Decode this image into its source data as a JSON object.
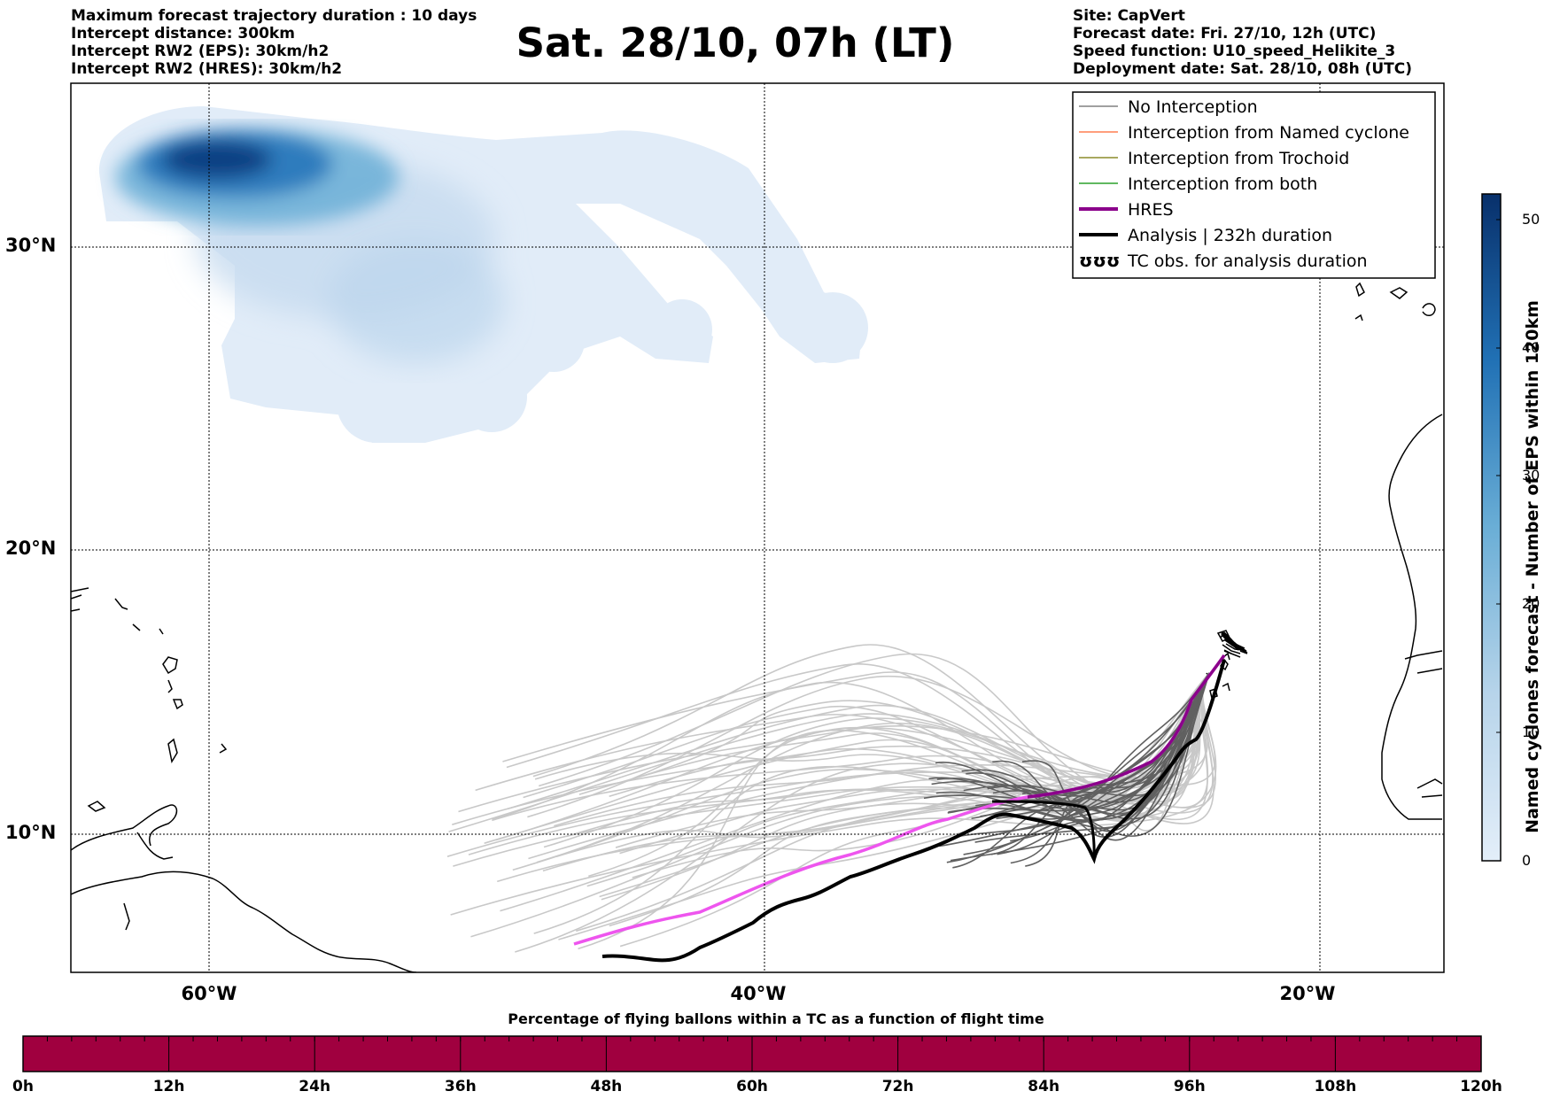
{
  "header": {
    "left": [
      "Maximum forecast trajectory duration : 10 days",
      "Intercept distance: 300km",
      "Intercept RW2 (EPS):  30km/h2",
      "Intercept RW2 (HRES): 30km/h2"
    ],
    "right": [
      "Site: CapVert",
      "Forecast date: Fri. 27/10, 12h (UTC)",
      "Speed function: U10_speed_Helikite_3",
      "Deployment date: Sat. 28/10, 08h (UTC)"
    ],
    "title": "Sat. 28/10, 07h (LT)"
  },
  "map": {
    "lat_labels": [
      "30°N",
      "20°N",
      "10°N"
    ],
    "lon_labels": [
      "60°W",
      "40°W",
      "20°W"
    ]
  },
  "legend": {
    "items": [
      {
        "label": "No Interception",
        "color": "#808080"
      },
      {
        "label": "Interception from Named cyclone",
        "color": "#ff7f50"
      },
      {
        "label": "Interception from Trochoid",
        "color": "#8b8b2a"
      },
      {
        "label": "Interception from both",
        "color": "#2ca02c"
      },
      {
        "label": "HRES",
        "color": "#8b008b"
      },
      {
        "label": "Analysis | 232h duration",
        "color": "#000000"
      },
      {
        "label": "TC obs. for analysis duration",
        "color": "#000000"
      }
    ],
    "obs_symbol": "ʊʊʊ"
  },
  "colorbar": {
    "label": "Named cyclones forecast - Number of EPS within 120km",
    "ticks": [
      "50",
      "40",
      "30",
      "20",
      "10",
      "0"
    ],
    "min": 0,
    "max": 52,
    "color_low": "#e3eef9",
    "color_high": "#08306b"
  },
  "bottom_bar": {
    "title": "Percentage of flying ballons within a TC as a function of flight time",
    "ticks": [
      "0h",
      "12h",
      "24h",
      "36h",
      "48h",
      "60h",
      "72h",
      "84h",
      "96h",
      "108h",
      "120h"
    ],
    "color": "#a0003f"
  },
  "colors": {
    "hres": "#ee55ee",
    "hres_dark": "#8b008b",
    "analysis": "#000000",
    "traj_light": "#c8c8c8",
    "traj_dark": "#606060"
  }
}
